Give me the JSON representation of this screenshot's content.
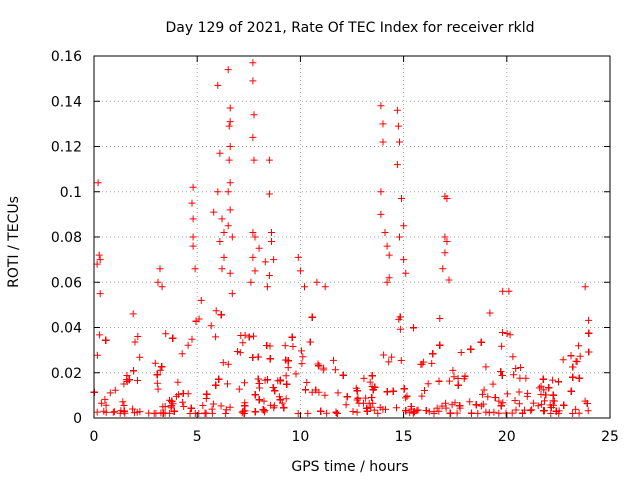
{
  "chart_data": {
    "type": "scatter",
    "title": "Day 129 of 2021, Rate Of TEC Index for receiver rkld",
    "xlabel": "GPS time / hours",
    "ylabel": "ROTI / TECUs",
    "xlim": [
      0,
      25
    ],
    "ylim": [
      0,
      0.16
    ],
    "xticks": [
      0,
      5,
      10,
      15,
      20,
      25
    ],
    "xtick_labels": [
      "0",
      "5",
      "10",
      "15",
      "20",
      "25"
    ],
    "yticks": [
      0,
      0.02,
      0.04,
      0.06,
      0.08,
      0.1,
      0.12,
      0.14,
      0.16
    ],
    "ytick_labels": [
      "0",
      "0.02",
      "0.04",
      "0.06",
      "0.08",
      "0.1",
      "0.12",
      "0.14",
      "0.16"
    ],
    "grid": true,
    "marker": "+",
    "color": "#ff0000",
    "series": [
      {
        "name": "ROTI",
        "envelope_hours": [
          0,
          0.5,
          1,
          1.5,
          2,
          2.5,
          3,
          3.5,
          4,
          4.5,
          5,
          5.5,
          6,
          6.5,
          7,
          7.5,
          8,
          8.5,
          9,
          9.5,
          10,
          10.5,
          11,
          11.5,
          12,
          12.5,
          13,
          13.5,
          14,
          14.5,
          15,
          15.5,
          16,
          16.5,
          17,
          17.5,
          18,
          18.5,
          19,
          19.5,
          20,
          20.5,
          21,
          21.5,
          22,
          22.5,
          23,
          23.5,
          24
        ],
        "envelope_typical_max": [
          0.045,
          0.04,
          0.02,
          0.02,
          0.045,
          0.04,
          0.04,
          0.045,
          0.03,
          0.035,
          0.05,
          0.045,
          0.05,
          0.05,
          0.045,
          0.05,
          0.045,
          0.04,
          0.035,
          0.035,
          0.04,
          0.05,
          0.045,
          0.035,
          0.02,
          0.016,
          0.018,
          0.025,
          0.05,
          0.05,
          0.045,
          0.04,
          0.035,
          0.045,
          0.045,
          0.04,
          0.035,
          0.03,
          0.045,
          0.055,
          0.05,
          0.03,
          0.025,
          0.022,
          0.02,
          0.025,
          0.035,
          0.05,
          0.045
        ],
        "outliers": [
          [
            0.2,
            0.104
          ],
          [
            0.25,
            0.072
          ],
          [
            0.3,
            0.07
          ],
          [
            0.15,
            0.068
          ],
          [
            0.3,
            0.055
          ],
          [
            1.9,
            0.046
          ],
          [
            3.2,
            0.066
          ],
          [
            3.1,
            0.06
          ],
          [
            3.3,
            0.058
          ],
          [
            4.8,
            0.102
          ],
          [
            4.75,
            0.095
          ],
          [
            4.8,
            0.088
          ],
          [
            4.8,
            0.08
          ],
          [
            4.8,
            0.076
          ],
          [
            4.9,
            0.066
          ],
          [
            5.2,
            0.052
          ],
          [
            5.8,
            0.091
          ],
          [
            6.0,
            0.147
          ],
          [
            6.1,
            0.117
          ],
          [
            6.0,
            0.1
          ],
          [
            6.2,
            0.088
          ],
          [
            6.3,
            0.082
          ],
          [
            6.1,
            0.078
          ],
          [
            6.3,
            0.071
          ],
          [
            6.2,
            0.066
          ],
          [
            6.5,
            0.154
          ],
          [
            6.6,
            0.137
          ],
          [
            6.6,
            0.131
          ],
          [
            6.55,
            0.129
          ],
          [
            6.6,
            0.12
          ],
          [
            6.55,
            0.114
          ],
          [
            6.6,
            0.104
          ],
          [
            6.5,
            0.1
          ],
          [
            6.6,
            0.092
          ],
          [
            6.5,
            0.085
          ],
          [
            6.7,
            0.08
          ],
          [
            6.6,
            0.064
          ],
          [
            6.7,
            0.055
          ],
          [
            7.7,
            0.157
          ],
          [
            7.7,
            0.149
          ],
          [
            7.75,
            0.134
          ],
          [
            7.7,
            0.124
          ],
          [
            7.75,
            0.114
          ],
          [
            7.7,
            0.082
          ],
          [
            7.8,
            0.08
          ],
          [
            7.7,
            0.071
          ],
          [
            7.8,
            0.065
          ],
          [
            7.6,
            0.06
          ],
          [
            8.0,
            0.075
          ],
          [
            8.3,
            0.069
          ],
          [
            8.4,
            0.058
          ],
          [
            8.5,
            0.114
          ],
          [
            8.5,
            0.099
          ],
          [
            8.6,
            0.082
          ],
          [
            8.6,
            0.078
          ],
          [
            8.7,
            0.07
          ],
          [
            8.5,
            0.063
          ],
          [
            9.9,
            0.071
          ],
          [
            10.0,
            0.065
          ],
          [
            10.2,
            0.058
          ],
          [
            10.8,
            0.06
          ],
          [
            11.2,
            0.058
          ],
          [
            13.9,
            0.138
          ],
          [
            14.0,
            0.13
          ],
          [
            14.0,
            0.122
          ],
          [
            13.9,
            0.1
          ],
          [
            13.9,
            0.09
          ],
          [
            14.1,
            0.082
          ],
          [
            14.2,
            0.076
          ],
          [
            14.3,
            0.072
          ],
          [
            14.3,
            0.062
          ],
          [
            14.2,
            0.06
          ],
          [
            14.7,
            0.136
          ],
          [
            14.75,
            0.129
          ],
          [
            14.8,
            0.122
          ],
          [
            14.7,
            0.112
          ],
          [
            14.9,
            0.097
          ],
          [
            15.0,
            0.085
          ],
          [
            14.8,
            0.08
          ],
          [
            15.0,
            0.07
          ],
          [
            15.1,
            0.064
          ],
          [
            17.0,
            0.098
          ],
          [
            17.1,
            0.097
          ],
          [
            17.0,
            0.08
          ],
          [
            17.1,
            0.078
          ],
          [
            17.0,
            0.073
          ],
          [
            16.9,
            0.066
          ],
          [
            17.2,
            0.061
          ],
          [
            19.8,
            0.056
          ],
          [
            20.1,
            0.056
          ],
          [
            23.8,
            0.058
          ]
        ]
      }
    ]
  }
}
